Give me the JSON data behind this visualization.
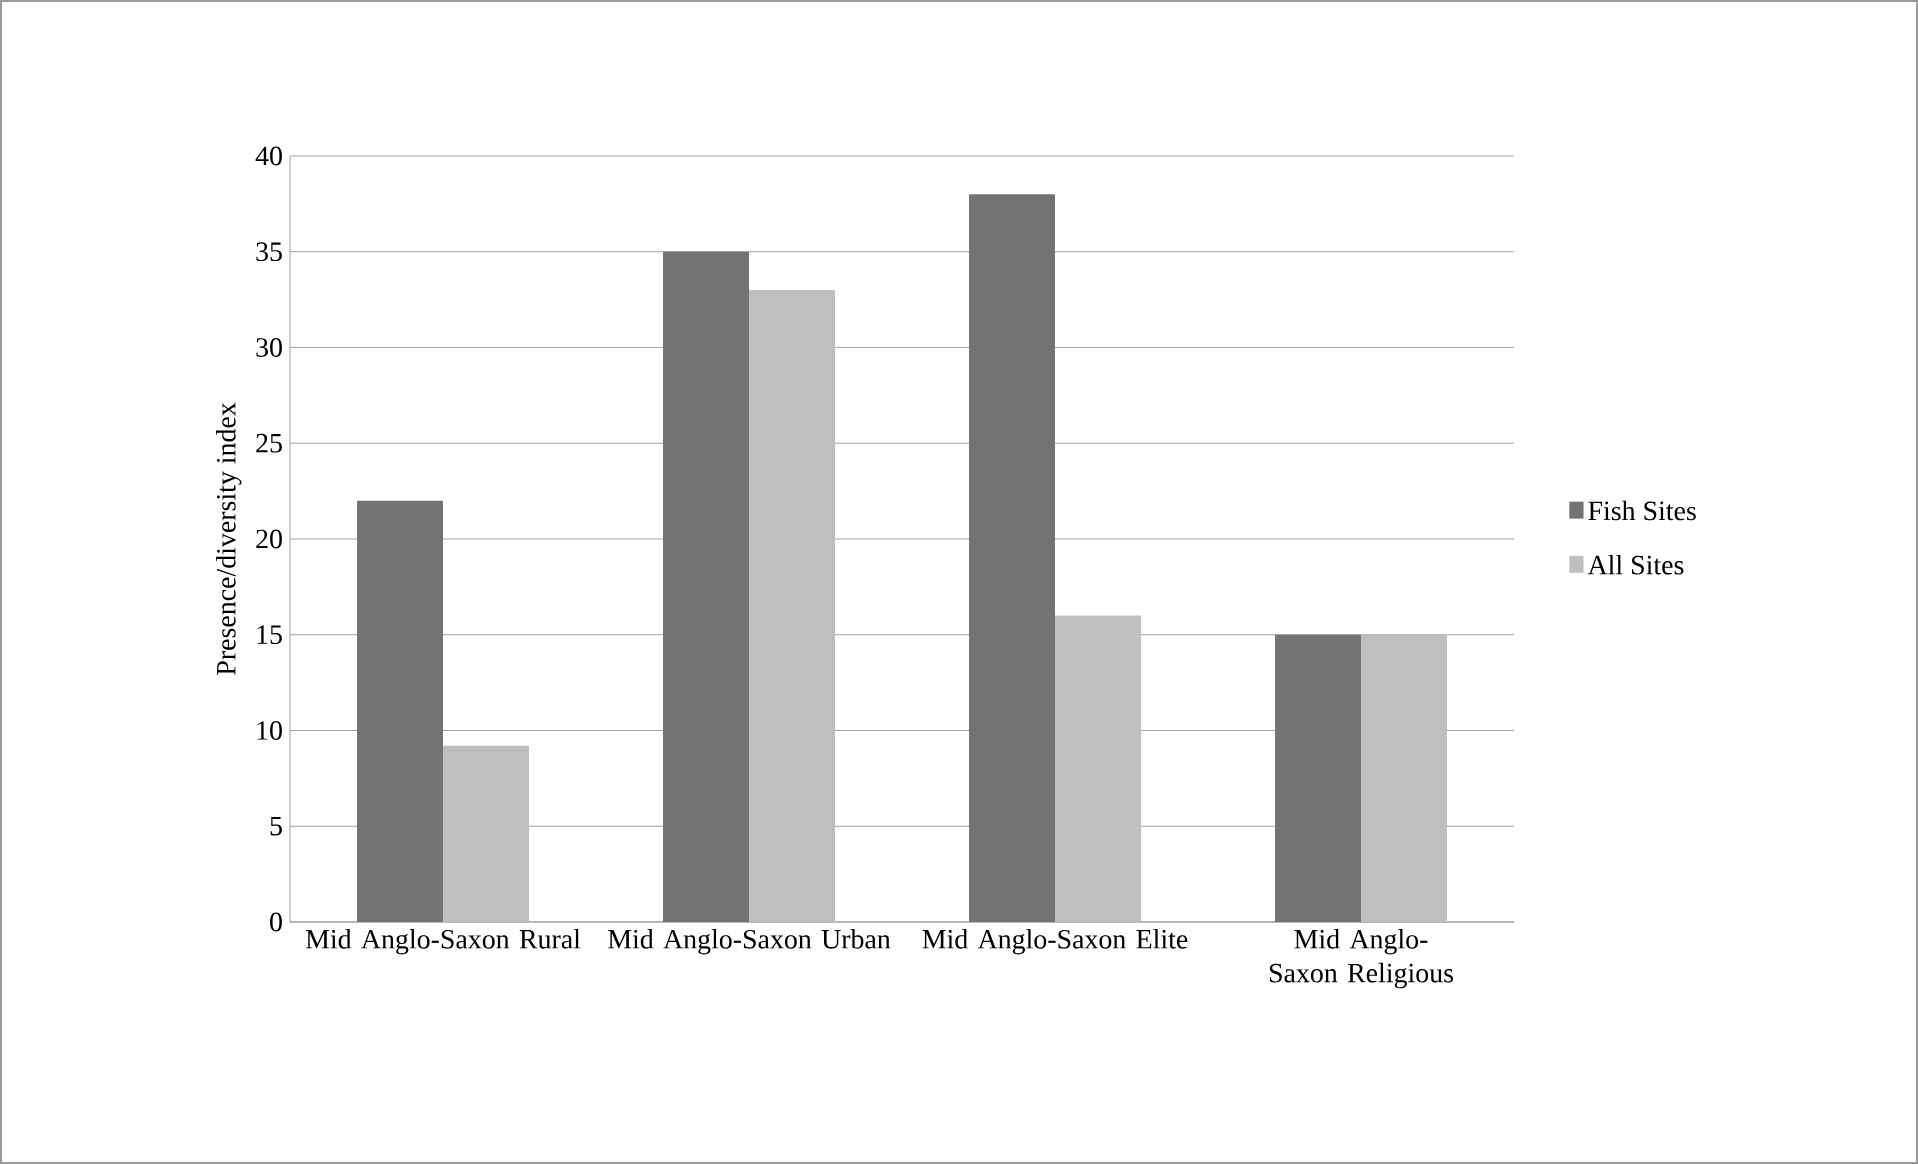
{
  "chart_data": {
    "type": "bar",
    "ylabel": "Presence/diversity index",
    "categories": [
      "Mid Anglo-Saxon Rural",
      "Mid Anglo-Saxon Urban",
      "Mid Anglo-Saxon Elite",
      "Mid Anglo-Saxon Religious"
    ],
    "series": [
      {
        "name": "Fish Sites",
        "color": "#737373",
        "values": [
          22,
          35,
          38,
          15
        ]
      },
      {
        "name": "All Sites",
        "color": "#bfbfbf",
        "values": [
          9.2,
          33,
          16,
          15
        ]
      }
    ],
    "ylim": [
      0,
      40
    ],
    "yticks": [
      0,
      5,
      10,
      15,
      20,
      25,
      30,
      35,
      40
    ],
    "grid": "y",
    "legend": "right"
  }
}
